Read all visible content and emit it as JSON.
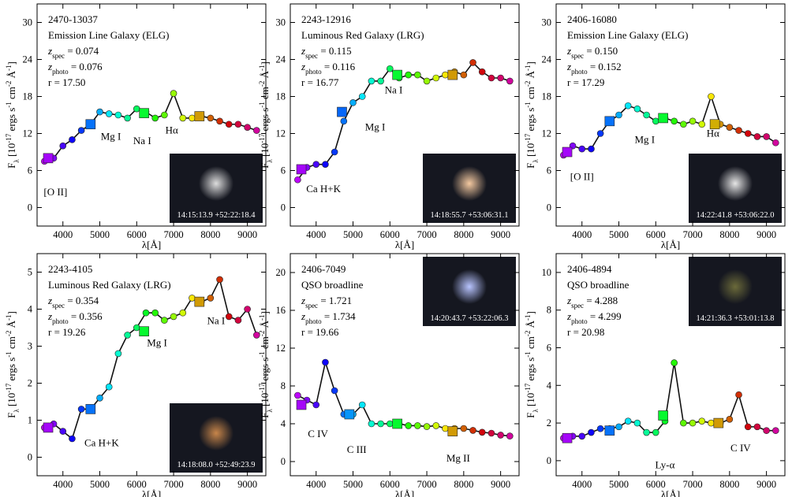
{
  "chart_data": [
    {
      "type": "line",
      "xlim": [
        3300,
        9500
      ],
      "xticks": [
        4000,
        5000,
        6000,
        7000,
        8000,
        9000
      ],
      "ylim": [
        -3,
        33
      ],
      "yticks": [
        0,
        6,
        12,
        18,
        24,
        30
      ],
      "xlabel": "λ[Å]",
      "ylabel": [
        {
          "text": "F"
        },
        {
          "text": "λ",
          "shift": "sub"
        },
        {
          "text": " [10"
        },
        {
          "text": "-17",
          "shift": "super"
        },
        {
          "text": " ergs s"
        },
        {
          "text": "-1",
          "shift": "super"
        },
        {
          "text": " cm"
        },
        {
          "text": "-2",
          "shift": "super"
        },
        {
          "text": " Å"
        },
        {
          "text": "-1",
          "shift": "super"
        },
        {
          "text": "]"
        }
      ],
      "info": [
        [
          {
            "text": "2470-13037"
          }
        ],
        [
          {
            "text": "Emission Line Galaxy (ELG)"
          }
        ],
        [
          {
            "text": "z",
            "italic": true
          },
          {
            "text": "spec",
            "shift": "sub"
          },
          {
            "text": " = 0.074"
          }
        ],
        [
          {
            "text": "z",
            "italic": true
          },
          {
            "text": "photo",
            "shift": "sub"
          },
          {
            "text": " = 0.076"
          }
        ],
        [
          {
            "text": "r = 17.50"
          }
        ]
      ],
      "x": [
        3500,
        3750,
        4000,
        4250,
        4500,
        4750,
        5000,
        5250,
        5500,
        5750,
        6000,
        6250,
        6500,
        6750,
        7000,
        7250,
        7500,
        7750,
        8000,
        8250,
        8500,
        8750,
        9000,
        9250
      ],
      "values": [
        7.5,
        8,
        10,
        11,
        12.5,
        13.5,
        15.5,
        15.2,
        15,
        14.5,
        16,
        15.5,
        14.5,
        15,
        18.5,
        14.5,
        14.5,
        14.8,
        14.5,
        14,
        13.5,
        13.5,
        13,
        12.5
      ],
      "broadband_x": [
        3600,
        4750,
        6200,
        7700
      ],
      "broadband_values": [
        8,
        13.5,
        15.3,
        14.8
      ],
      "annotations": [
        {
          "text": "[O II]",
          "x": 3800,
          "y": 2
        },
        {
          "text": "Mg I",
          "x": 5300,
          "y": 11
        },
        {
          "text": "Na I",
          "x": 6150,
          "y": 10.3
        },
        {
          "text": "Hα",
          "x": 6950,
          "y": 12
        }
      ],
      "inset": {
        "corner": "bottom-right",
        "label": "14:15:13.9 +52:22:18.4",
        "glow": "#ddd"
      }
    },
    {
      "type": "line",
      "xlim": [
        3300,
        9500
      ],
      "xticks": [
        4000,
        5000,
        6000,
        7000,
        8000,
        9000
      ],
      "ylim": [
        -3,
        33
      ],
      "yticks": [
        0,
        6,
        12,
        18,
        24,
        30
      ],
      "xlabel": "λ[Å]",
      "ylabel": [
        {
          "text": "F"
        },
        {
          "text": "λ",
          "shift": "sub"
        },
        {
          "text": " [10"
        },
        {
          "text": "-17",
          "shift": "super"
        },
        {
          "text": " ergs s"
        },
        {
          "text": "-1",
          "shift": "super"
        },
        {
          "text": " cm"
        },
        {
          "text": "-2",
          "shift": "super"
        },
        {
          "text": " Å"
        },
        {
          "text": "-1",
          "shift": "super"
        },
        {
          "text": "]"
        }
      ],
      "info": [
        [
          {
            "text": "2243-12916"
          }
        ],
        [
          {
            "text": "Luminous Red Galaxy (LRG)"
          }
        ],
        [
          {
            "text": "z",
            "italic": true
          },
          {
            "text": "spec",
            "shift": "sub"
          },
          {
            "text": " = 0.115"
          }
        ],
        [
          {
            "text": "z",
            "italic": true
          },
          {
            "text": "photo",
            "shift": "sub"
          },
          {
            "text": " = 0.116"
          }
        ],
        [
          {
            "text": "r = 16.77"
          }
        ]
      ],
      "x": [
        3500,
        3750,
        4000,
        4250,
        4500,
        4750,
        5000,
        5250,
        5500,
        5750,
        6000,
        6250,
        6500,
        6750,
        7000,
        7250,
        7500,
        7750,
        8000,
        8250,
        8500,
        8750,
        9000,
        9250
      ],
      "values": [
        4.5,
        6.5,
        7,
        7,
        9,
        14,
        17,
        18,
        20.5,
        20.5,
        22.5,
        21,
        21.5,
        21.5,
        20.5,
        21,
        21.5,
        22,
        21.5,
        23.5,
        22,
        21,
        21,
        20.5
      ],
      "broadband_x": [
        3600,
        4700,
        6200,
        7700
      ],
      "broadband_values": [
        6.2,
        15.5,
        21.5,
        21.5
      ],
      "annotations": [
        {
          "text": "Ca H+K",
          "x": 4200,
          "y": 2.5
        },
        {
          "text": "Mg I",
          "x": 5600,
          "y": 12.5
        },
        {
          "text": "Na I",
          "x": 6100,
          "y": 18.5
        }
      ],
      "inset": {
        "corner": "bottom-right",
        "label": "14:18:55.7 +53:06:31.1",
        "glow": "#f4c9a0"
      }
    },
    {
      "type": "line",
      "xlim": [
        3300,
        9500
      ],
      "xticks": [
        4000,
        5000,
        6000,
        7000,
        8000,
        9000
      ],
      "ylim": [
        -3,
        33
      ],
      "yticks": [
        0,
        6,
        12,
        18,
        24,
        30
      ],
      "xlabel": "λ[Å]",
      "ylabel": [
        {
          "text": "F"
        },
        {
          "text": "λ",
          "shift": "sub"
        },
        {
          "text": " [10"
        },
        {
          "text": "-17",
          "shift": "super"
        },
        {
          "text": " ergs s"
        },
        {
          "text": "-1",
          "shift": "super"
        },
        {
          "text": " cm"
        },
        {
          "text": "-2",
          "shift": "super"
        },
        {
          "text": " Å"
        },
        {
          "text": "-1",
          "shift": "super"
        },
        {
          "text": "]"
        }
      ],
      "info": [
        [
          {
            "text": "2406-16080"
          }
        ],
        [
          {
            "text": "Emission Line Galaxy (ELG)"
          }
        ],
        [
          {
            "text": "z",
            "italic": true
          },
          {
            "text": "spec",
            "shift": "sub"
          },
          {
            "text": " = 0.150"
          }
        ],
        [
          {
            "text": "z",
            "italic": true
          },
          {
            "text": "photo",
            "shift": "sub"
          },
          {
            "text": " = 0.152"
          }
        ],
        [
          {
            "text": "r = 17.29"
          }
        ]
      ],
      "x": [
        3500,
        3750,
        4000,
        4250,
        4500,
        4750,
        5000,
        5250,
        5500,
        5750,
        6000,
        6250,
        6500,
        6750,
        7000,
        7250,
        7500,
        7750,
        8000,
        8250,
        8500,
        8750,
        9000,
        9250
      ],
      "values": [
        8.5,
        10,
        9.5,
        9.5,
        12,
        14,
        15,
        16.5,
        16,
        15,
        14,
        14.5,
        14,
        13.5,
        14,
        13.5,
        18,
        13.5,
        13,
        12.5,
        12,
        11.5,
        11.5,
        10.5
      ],
      "broadband_x": [
        3600,
        4750,
        6200,
        7600
      ],
      "broadband_values": [
        9,
        14,
        14.5,
        13.5
      ],
      "annotations": [
        {
          "text": "[O II]",
          "x": 4000,
          "y": 4.5
        },
        {
          "text": "Mg I",
          "x": 5700,
          "y": 10.5
        },
        {
          "text": "Hα",
          "x": 7550,
          "y": 11.5
        }
      ],
      "inset": {
        "corner": "bottom-right",
        "label": "14:22:41.8 +53:06:22.0",
        "glow": "#e6e6e6"
      }
    },
    {
      "type": "line",
      "xlim": [
        3300,
        9500
      ],
      "xticks": [
        4000,
        5000,
        6000,
        7000,
        8000,
        9000
      ],
      "ylim": [
        -0.5,
        5.5
      ],
      "yticks": [
        0,
        1,
        2,
        3,
        4,
        5
      ],
      "xlabel": "λ[Å]",
      "ylabel": [
        {
          "text": "F"
        },
        {
          "text": "λ",
          "shift": "sub"
        },
        {
          "text": " [10"
        },
        {
          "text": "-17",
          "shift": "super"
        },
        {
          "text": " ergs s"
        },
        {
          "text": "-1",
          "shift": "super"
        },
        {
          "text": " cm"
        },
        {
          "text": "-2",
          "shift": "super"
        },
        {
          "text": " Å"
        },
        {
          "text": "-1",
          "shift": "super"
        },
        {
          "text": "]"
        }
      ],
      "info": [
        [
          {
            "text": "2243-4105"
          }
        ],
        [
          {
            "text": "Luminous Red Galaxy (LRG)"
          }
        ],
        [
          {
            "text": "z",
            "italic": true
          },
          {
            "text": "spec",
            "shift": "sub"
          },
          {
            "text": " = 0.354"
          }
        ],
        [
          {
            "text": "z",
            "italic": true
          },
          {
            "text": "photo",
            "shift": "sub"
          },
          {
            "text": " = 0.356"
          }
        ],
        [
          {
            "text": "r = 19.26"
          }
        ]
      ],
      "x": [
        3500,
        3750,
        4000,
        4250,
        4500,
        4750,
        5000,
        5250,
        5500,
        5750,
        6000,
        6250,
        6500,
        6750,
        7000,
        7250,
        7500,
        7750,
        8000,
        8250,
        8500,
        8750,
        9000,
        9250
      ],
      "values": [
        0.8,
        0.9,
        0.7,
        0.5,
        1.3,
        1.3,
        1.6,
        1.9,
        2.8,
        3.3,
        3.5,
        3.9,
        3.9,
        3.7,
        3.8,
        3.9,
        4.3,
        4.2,
        4.3,
        4.8,
        3.8,
        3.7,
        4,
        3.3
      ],
      "broadband_x": [
        3600,
        4750,
        6200,
        7700
      ],
      "broadband_values": [
        0.8,
        1.3,
        3.4,
        4.2
      ],
      "annotations": [
        {
          "text": "Ca H+K",
          "x": 5050,
          "y": 0.3
        },
        {
          "text": "Mg I",
          "x": 6550,
          "y": 3
        },
        {
          "text": "Na I",
          "x": 8150,
          "y": 3.6
        }
      ],
      "inset": {
        "corner": "bottom-right",
        "label": "14:18:08.0 +52:49:23.9",
        "glow": "#c8864a"
      }
    },
    {
      "type": "line",
      "xlim": [
        3300,
        9500
      ],
      "xticks": [
        4000,
        5000,
        6000,
        7000,
        8000,
        9000
      ],
      "ylim": [
        -1.5,
        22
      ],
      "yticks": [
        0,
        4,
        8,
        12,
        16,
        20
      ],
      "xlabel": "λ[Å]",
      "ylabel": [
        {
          "text": "F"
        },
        {
          "text": "λ",
          "shift": "sub"
        },
        {
          "text": " [10"
        },
        {
          "text": "-17",
          "shift": "super"
        },
        {
          "text": " ergs s"
        },
        {
          "text": "-1",
          "shift": "super"
        },
        {
          "text": " cm"
        },
        {
          "text": "-2",
          "shift": "super"
        },
        {
          "text": " Å"
        },
        {
          "text": "-1",
          "shift": "super"
        },
        {
          "text": "]"
        }
      ],
      "info": [
        [
          {
            "text": "2406-7049"
          }
        ],
        [
          {
            "text": "QSO broadline"
          }
        ],
        [
          {
            "text": "z",
            "italic": true
          },
          {
            "text": "spec",
            "shift": "sub"
          },
          {
            "text": " = 1.721"
          }
        ],
        [
          {
            "text": "z",
            "italic": true
          },
          {
            "text": "photo",
            "shift": "sub"
          },
          {
            "text": " = 1.734"
          }
        ],
        [
          {
            "text": "r = 19.66"
          }
        ]
      ],
      "x": [
        3500,
        3750,
        4000,
        4250,
        4500,
        4750,
        5000,
        5250,
        5500,
        5750,
        6000,
        6250,
        6500,
        6750,
        7000,
        7250,
        7500,
        7750,
        8000,
        8250,
        8500,
        8750,
        9000,
        9250
      ],
      "values": [
        7,
        6.5,
        6,
        10.5,
        7.5,
        5,
        5,
        6,
        4,
        4,
        4,
        4,
        3.8,
        3.8,
        3.7,
        3.8,
        3.5,
        3.5,
        3.5,
        3.3,
        3.1,
        3,
        2.8,
        2.7
      ],
      "broadband_x": [
        3600,
        4900,
        6200,
        7700
      ],
      "broadband_values": [
        6,
        5,
        4,
        3.2
      ],
      "annotations": [
        {
          "text": "C IV",
          "x": 4050,
          "y": 2.6
        },
        {
          "text": "C III",
          "x": 5100,
          "y": 0.9
        },
        {
          "text": "Mg II",
          "x": 7850,
          "y": 0
        }
      ],
      "inset": {
        "corner": "top-right",
        "label": "14:20:43.7 +53:22:06.3",
        "glow": "#b8c4ff"
      }
    },
    {
      "type": "line",
      "xlim": [
        3300,
        9500
      ],
      "xticks": [
        4000,
        5000,
        6000,
        7000,
        8000,
        9000
      ],
      "ylim": [
        -0.8,
        11
      ],
      "yticks": [
        0,
        2,
        4,
        6,
        8,
        10
      ],
      "xlabel": "λ[Å]",
      "ylabel": [
        {
          "text": "F"
        },
        {
          "text": "λ",
          "shift": "sub"
        },
        {
          "text": " [10"
        },
        {
          "text": "-17",
          "shift": "super"
        },
        {
          "text": " ergs s"
        },
        {
          "text": "-1",
          "shift": "super"
        },
        {
          "text": " cm"
        },
        {
          "text": "-2",
          "shift": "super"
        },
        {
          "text": " Å"
        },
        {
          "text": "-1",
          "shift": "super"
        },
        {
          "text": "]"
        }
      ],
      "info": [
        [
          {
            "text": "2406-4894"
          }
        ],
        [
          {
            "text": "QSO broadline"
          }
        ],
        [
          {
            "text": "z",
            "italic": true
          },
          {
            "text": "spec",
            "shift": "sub"
          },
          {
            "text": " = 4.288"
          }
        ],
        [
          {
            "text": "z",
            "italic": true
          },
          {
            "text": "photo",
            "shift": "sub"
          },
          {
            "text": " = 4.299"
          }
        ],
        [
          {
            "text": "r = 20.98"
          }
        ]
      ],
      "x": [
        3500,
        3750,
        4000,
        4250,
        4500,
        4750,
        5000,
        5250,
        5500,
        5750,
        6000,
        6250,
        6500,
        6750,
        7000,
        7250,
        7500,
        7750,
        8000,
        8250,
        8500,
        8750,
        9000,
        9250
      ],
      "values": [
        1.2,
        1.3,
        1.3,
        1.5,
        1.7,
        1.7,
        1.8,
        2.1,
        2,
        1.5,
        1.5,
        2.1,
        5.2,
        2,
        2,
        2.1,
        2,
        2,
        2.2,
        3.5,
        1.8,
        1.8,
        1.6,
        1.6
      ],
      "broadband_x": [
        3600,
        4750,
        6200,
        7700
      ],
      "broadband_values": [
        1.2,
        1.6,
        2.4,
        2
      ],
      "annotations": [
        {
          "text": "Ly-α",
          "x": 6250,
          "y": -0.4
        },
        {
          "text": "C IV",
          "x": 8300,
          "y": 0.5
        }
      ],
      "inset": {
        "corner": "top-right",
        "label": "14:21:36.3 +53:01:13.8",
        "glow": "#6b6a3a"
      }
    }
  ]
}
